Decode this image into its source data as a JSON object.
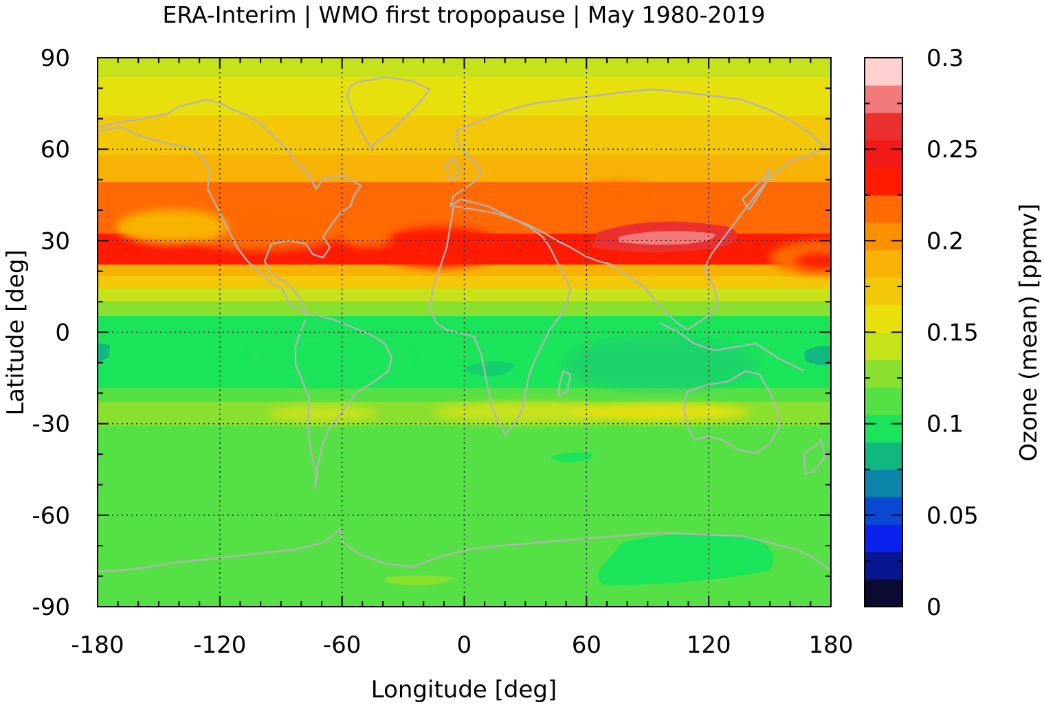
{
  "chart_data": {
    "type": "heatmap",
    "title": "ERA-Interim | WMO first tropopause | May 1980-2019",
    "xlabel": "Longitude [deg]",
    "ylabel": "Latitude [deg]",
    "xlim": [
      -180,
      180
    ],
    "ylim": [
      -90,
      90
    ],
    "x_ticks": [
      "-180",
      "-120",
      "-60",
      "0",
      "60",
      "120",
      "180"
    ],
    "y_ticks": [
      "90",
      "60",
      "30",
      "0",
      "-30",
      "-60",
      "-90"
    ],
    "grid": "dotted",
    "colorbar": {
      "label": "Ozone (mean) [ppmv]",
      "range": [
        0,
        0.3
      ],
      "ticks": [
        "0.3",
        "0.25",
        "0.2",
        "0.15",
        "0.1",
        "0.05",
        "0"
      ],
      "levels": [
        0,
        0.015,
        0.03,
        0.045,
        0.06,
        0.075,
        0.09,
        0.105,
        0.12,
        0.135,
        0.15,
        0.165,
        0.18,
        0.195,
        0.21,
        0.225,
        0.24,
        0.255,
        0.27,
        0.285,
        0.3
      ],
      "colors": [
        "#0b0b30",
        "#0a1590",
        "#0a22ee",
        "#0a48d2",
        "#0a84a8",
        "#10b880",
        "#1ae45a",
        "#55e045",
        "#8ae02e",
        "#c6e21a",
        "#e8e00c",
        "#f2c808",
        "#f8b205",
        "#f89000",
        "#ff6a05",
        "#ff1a00",
        "#f21a18",
        "#ec3030",
        "#f27a7a",
        "#ffd0d0"
      ]
    },
    "field_description_bands_by_latitude": [
      {
        "lat": [
          -90,
          -20
        ],
        "ozone_ppmv": 0.11
      },
      {
        "lat": [
          -20,
          5
        ],
        "ozone_ppmv": 0.1
      },
      {
        "lat": [
          5,
          15
        ],
        "ozone_ppmv": 0.13
      },
      {
        "lat": [
          15,
          20
        ],
        "ozone_ppmv": 0.17
      },
      {
        "lat": [
          20,
          32
        ],
        "ozone_ppmv": 0.235
      },
      {
        "lat": [
          32,
          48
        ],
        "ozone_ppmv": 0.215
      },
      {
        "lat": [
          48,
          70
        ],
        "ozone_ppmv": 0.18
      },
      {
        "lat": [
          70,
          90
        ],
        "ozone_ppmv": 0.155
      }
    ],
    "annotations": [
      "maximum ~0.29 ppmv near 30N, 80-130E",
      "minimum ~0.08 ppmv near 0, 180"
    ],
    "coastlines_color": "#b4b4b4"
  }
}
